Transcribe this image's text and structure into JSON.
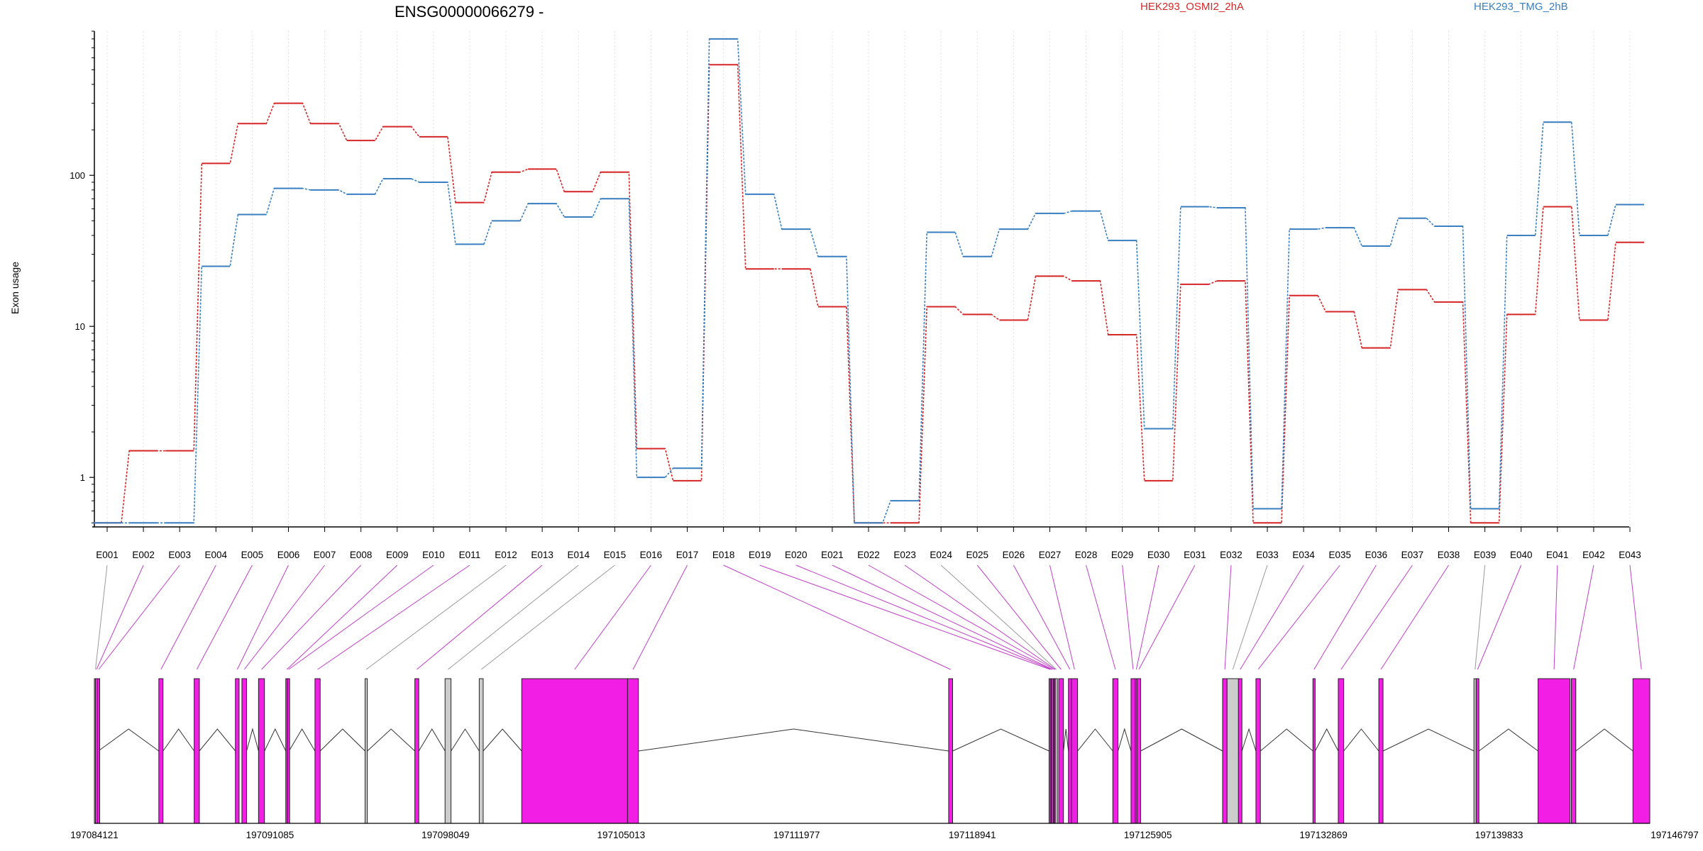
{
  "chart_data": {
    "type": "line",
    "title": "ENSG00000066279 -",
    "ylabel": "Exon usage",
    "xlabel": "",
    "y_scale": "log",
    "y_ticks": [
      1,
      10,
      100
    ],
    "y_tick_labels": [
      "1",
      "10",
      "100"
    ],
    "ylim": [
      0.47,
      900
    ],
    "grid": "vertical dotted lines at each exon",
    "legend_position": "top",
    "categories": [
      "E001",
      "E002",
      "E003",
      "E004",
      "E005",
      "E006",
      "E007",
      "E008",
      "E009",
      "E010",
      "E011",
      "E012",
      "E013",
      "E014",
      "E015",
      "E016",
      "E017",
      "E018",
      "E019",
      "E020",
      "E021",
      "E022",
      "E023",
      "E024",
      "E025",
      "E026",
      "E027",
      "E028",
      "E029",
      "E030",
      "E031",
      "E032",
      "E033",
      "E034",
      "E035",
      "E036",
      "E037",
      "E038",
      "E039",
      "E040",
      "E041",
      "E042",
      "E043"
    ],
    "series": [
      {
        "name": "HEK293_OSMI2_2hA",
        "color": "#d62728",
        "values": [
          0.5,
          1.5,
          1.5,
          120,
          220,
          300,
          220,
          170,
          210,
          180,
          66,
          105,
          110,
          78,
          105,
          1.55,
          0.95,
          540,
          24,
          24,
          13.5,
          0.5,
          0.5,
          13.5,
          12,
          11,
          21.5,
          20,
          8.8,
          0.95,
          19,
          20,
          0.5,
          16,
          12.5,
          7.2,
          17.5,
          14.5,
          0.5,
          12,
          62,
          11,
          36
        ]
      },
      {
        "name": "HEK293_TMG_2hB",
        "color": "#3a7fc0",
        "values": [
          0.5,
          0.5,
          0.5,
          25,
          55,
          82,
          80,
          75,
          95,
          90,
          35,
          50,
          65,
          53,
          70,
          1.0,
          1.15,
          800,
          75,
          44,
          29,
          0.5,
          0.7,
          42,
          29,
          44,
          56,
          58,
          37,
          2.1,
          62,
          61,
          0.62,
          44,
          45,
          34,
          52,
          46,
          0.62,
          40,
          225,
          40,
          64
        ]
      }
    ],
    "exon_track": {
      "coordinate_labels": [
        "197084121",
        "197091085",
        "197098049",
        "197105013",
        "197111977",
        "197118941",
        "197125905",
        "197132869",
        "197139833",
        "197146797"
      ],
      "coordinate_range": [
        197084121,
        197146797
      ],
      "exon_colors": {
        "expressed": "#f21ee6",
        "not_expressed": "#cccccc"
      },
      "exons": [
        {
          "id": "E001",
          "start": 197084121,
          "end": 197084161,
          "status": "not_expressed"
        },
        {
          "id": "E002",
          "start": 197084161,
          "end": 197084251,
          "status": "expressed"
        },
        {
          "id": "E003",
          "start": 197084251,
          "end": 197084281,
          "status": "expressed"
        },
        {
          "id": "E004",
          "start": 197086718,
          "end": 197086888,
          "status": "expressed"
        },
        {
          "id": "E005",
          "start": 197088142,
          "end": 197088352,
          "status": "expressed"
        },
        {
          "id": "E006",
          "start": 197089803,
          "end": 197089953,
          "status": "expressed"
        },
        {
          "id": "E007",
          "start": 197090066,
          "end": 197090256,
          "status": "expressed"
        },
        {
          "id": "E008",
          "start": 197090736,
          "end": 197090976,
          "status": "expressed"
        },
        {
          "id": "E009",
          "start": 197091834,
          "end": 197091904,
          "status": "expressed"
        },
        {
          "id": "E010",
          "start": 197091904,
          "end": 197091964,
          "status": "expressed"
        },
        {
          "id": "E011",
          "start": 197093010,
          "end": 197093220,
          "status": "expressed"
        },
        {
          "id": "E012",
          "start": 197095029,
          "end": 197095119,
          "status": "not_expressed"
        },
        {
          "id": "E013",
          "start": 197097034,
          "end": 197097194,
          "status": "expressed"
        },
        {
          "id": "E014",
          "start": 197098252,
          "end": 197098492,
          "status": "not_expressed"
        },
        {
          "id": "E015",
          "start": 197099629,
          "end": 197099789,
          "status": "not_expressed"
        },
        {
          "id": "E016",
          "start": 197101341,
          "end": 197105605,
          "status": "expressed"
        },
        {
          "id": "E017",
          "start": 197105605,
          "end": 197106045,
          "status": "expressed"
        },
        {
          "id": "E018",
          "start": 197118545,
          "end": 197118705,
          "status": "expressed"
        },
        {
          "id": "E019",
          "start": 197122591,
          "end": 197122661,
          "status": "expressed"
        },
        {
          "id": "E020",
          "start": 197122661,
          "end": 197122691,
          "status": "expressed"
        },
        {
          "id": "E021",
          "start": 197122691,
          "end": 197122771,
          "status": "expressed"
        },
        {
          "id": "E022",
          "start": 197122771,
          "end": 197122801,
          "status": "expressed"
        },
        {
          "id": "E023",
          "start": 197122801,
          "end": 197122841,
          "status": "expressed"
        },
        {
          "id": "E024",
          "start": 197122841,
          "end": 197122881,
          "status": "not_expressed"
        },
        {
          "id": "E025",
          "start": 197122981,
          "end": 197123171,
          "status": "expressed"
        },
        {
          "id": "E026",
          "start": 197123371,
          "end": 197123491,
          "status": "expressed"
        },
        {
          "id": "E027",
          "start": 197123491,
          "end": 197123741,
          "status": "expressed"
        },
        {
          "id": "E028",
          "start": 197125159,
          "end": 197125369,
          "status": "expressed"
        },
        {
          "id": "E029",
          "start": 197125893,
          "end": 197126063,
          "status": "expressed"
        },
        {
          "id": "E030",
          "start": 197126063,
          "end": 197126133,
          "status": "expressed"
        },
        {
          "id": "E031",
          "start": 197126133,
          "end": 197126283,
          "status": "expressed"
        },
        {
          "id": "E032",
          "start": 197129583,
          "end": 197129763,
          "status": "expressed"
        },
        {
          "id": "E033",
          "start": 197129763,
          "end": 197130223,
          "status": "not_expressed"
        },
        {
          "id": "E034",
          "start": 197130223,
          "end": 197130363,
          "status": "expressed"
        },
        {
          "id": "E035",
          "start": 197130926,
          "end": 197131106,
          "status": "expressed"
        },
        {
          "id": "E036",
          "start": 197133223,
          "end": 197133313,
          "status": "expressed"
        },
        {
          "id": "E037",
          "start": 197134245,
          "end": 197134465,
          "status": "expressed"
        },
        {
          "id": "E038",
          "start": 197135878,
          "end": 197136048,
          "status": "expressed"
        },
        {
          "id": "E039",
          "start": 197139712,
          "end": 197139802,
          "status": "not_expressed"
        },
        {
          "id": "E040",
          "start": 197139802,
          "end": 197139912,
          "status": "expressed"
        },
        {
          "id": "E041",
          "start": 197142295,
          "end": 197143585,
          "status": "expressed"
        },
        {
          "id": "E042",
          "start": 197143637,
          "end": 197143817,
          "status": "expressed"
        },
        {
          "id": "E043",
          "start": 197146119,
          "end": 197146797,
          "status": "expressed"
        }
      ]
    }
  }
}
